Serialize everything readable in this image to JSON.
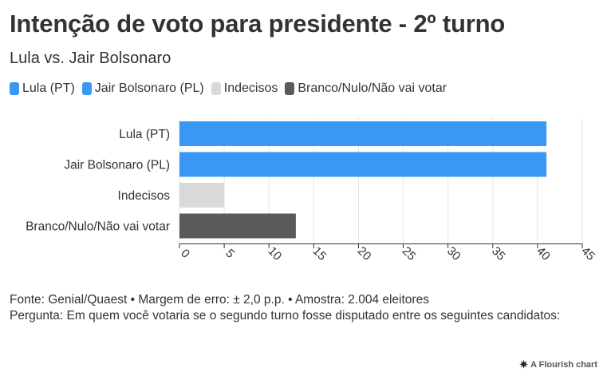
{
  "header": {
    "title": "Intenção de voto para presidente - 2º turno",
    "subtitle": "Lula vs. Jair Bolsonaro"
  },
  "legend": [
    {
      "label": "Lula (PT)",
      "color": "#3a98f5"
    },
    {
      "label": "Jair Bolsonaro (PL)",
      "color": "#3a98f5"
    },
    {
      "label": "Indecisos",
      "color": "#d9d9d9"
    },
    {
      "label": "Branco/Nulo/Não vai votar",
      "color": "#5a5a5a"
    }
  ],
  "chart_data": {
    "type": "bar",
    "orientation": "horizontal",
    "categories": [
      "Lula (PT)",
      "Jair Bolsonaro (PL)",
      "Indecisos",
      "Branco/Nulo/Não vai votar"
    ],
    "values": [
      41,
      41,
      5,
      13
    ],
    "colors": [
      "#3a98f5",
      "#3a98f5",
      "#d9d9d9",
      "#5a5a5a"
    ],
    "title": "Intenção de voto para presidente - 2º turno",
    "subtitle": "Lula vs. Jair Bolsonaro",
    "xlabel": "",
    "ylabel": "",
    "xlim": [
      0,
      45
    ],
    "xticks": [
      0,
      5,
      10,
      15,
      20,
      25,
      30,
      35,
      40,
      45
    ],
    "grid": true,
    "legend_position": "top-left"
  },
  "footer": {
    "source": "Fonte: Genial/Quaest • Margem de erro: ± 2,0 p.p. • Amostra: 2.004 eleitores",
    "question": "Pergunta: Em quem você votaria se o segundo turno fosse disputado entre os seguintes candidatos:",
    "credit": "A Flourish chart"
  }
}
